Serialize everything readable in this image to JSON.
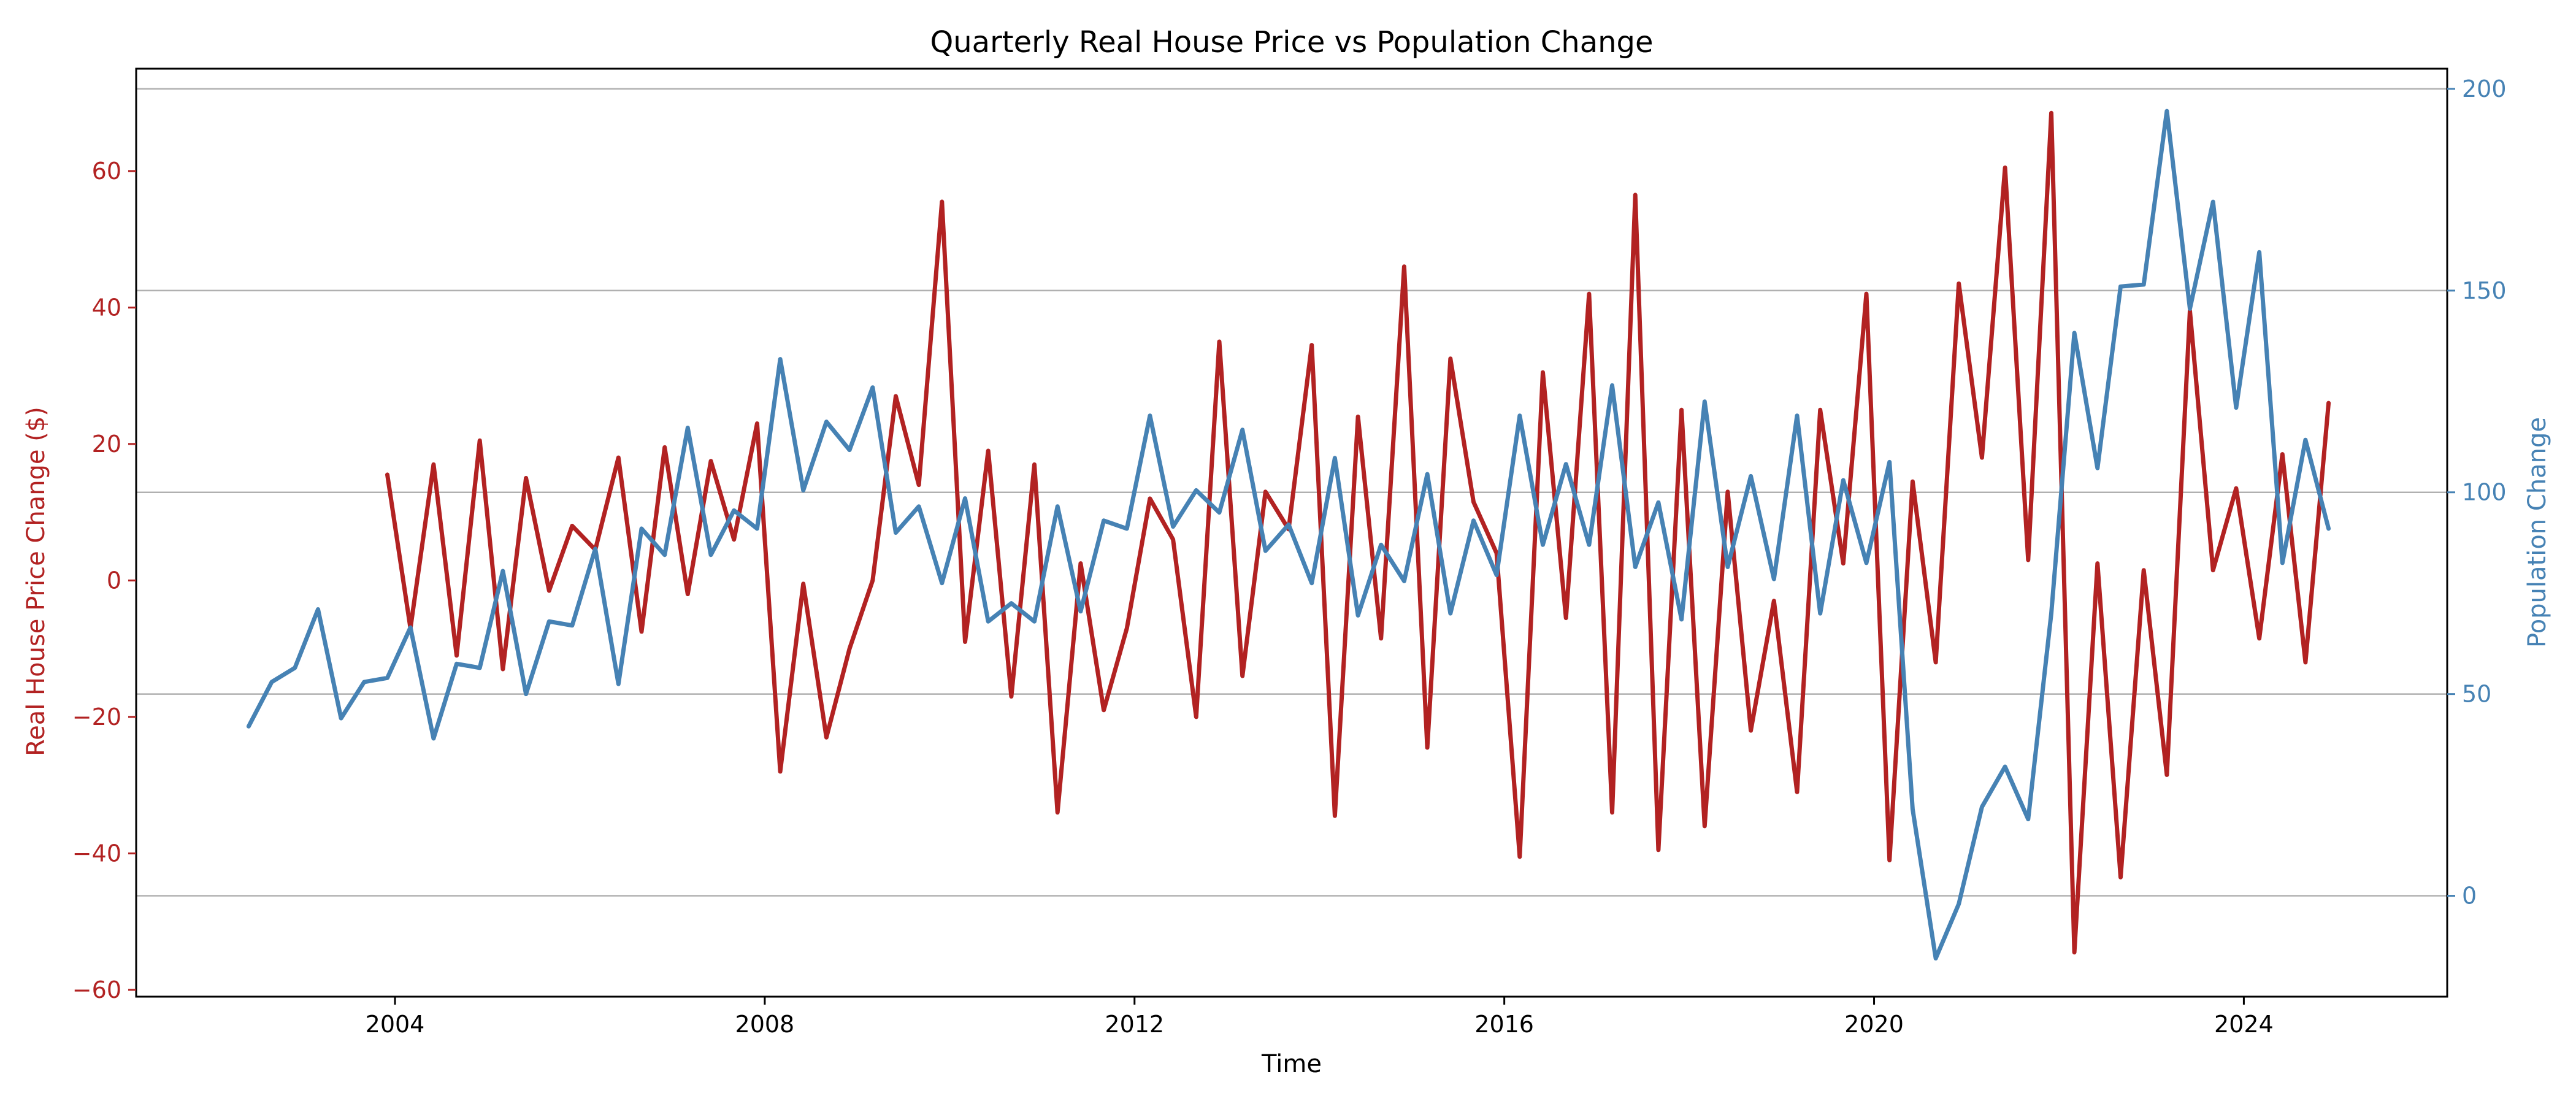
{
  "chart_data": {
    "type": "line",
    "title": "Quarterly Real House Price vs Population Change",
    "xlabel": "Time",
    "ylabel_left": "Real House Price Change ($)",
    "ylabel_right": "Population Change",
    "xlim": [
      2001.2,
      2026.2
    ],
    "ylim_left": [
      -61,
      75
    ],
    "ylim_right": [
      -25,
      205
    ],
    "x_ticks": [
      2004,
      2008,
      2012,
      2016,
      2020,
      2024
    ],
    "x_tick_labels": [
      "2004",
      "2008",
      "2012",
      "2016",
      "2020",
      "2024"
    ],
    "y_left_ticks": [
      -60,
      -40,
      -20,
      0,
      20,
      40,
      60
    ],
    "y_left_tick_labels": [
      "−60",
      "−40",
      "−20",
      "0",
      "20",
      "40",
      "60"
    ],
    "y_right_ticks": [
      0,
      50,
      100,
      150,
      200
    ],
    "y_right_tick_labels": [
      "0",
      "50",
      "100",
      "150",
      "200"
    ],
    "grid": "horizontal lines at right-axis ticks",
    "colors": {
      "left": "#b22222",
      "right": "#4682b4",
      "grid": "#b0b0b0",
      "frame": "#000000"
    },
    "series": [
      {
        "axis": "left",
        "x_start": 2003.917,
        "x_step": 0.25,
        "values": [
          15.5,
          -7,
          17,
          -11,
          20.5,
          -13,
          15,
          -1.5,
          8,
          4.5,
          18,
          -7.5,
          19.5,
          -2,
          17.5,
          6,
          23,
          -28,
          -0.5,
          -23,
          -10,
          0,
          27,
          14,
          55.5,
          -9,
          19,
          -17,
          17,
          -34,
          2.5,
          -19,
          -7,
          12,
          6,
          -20,
          35,
          -14,
          13,
          7.5,
          34.5,
          -34.5,
          24,
          -8.5,
          46,
          -24.5,
          32.5,
          11.5,
          4,
          -40.5,
          30.5,
          -5.5,
          42,
          -34,
          56.5,
          -39.5,
          25,
          -36,
          13,
          -22,
          -3,
          -31,
          25,
          2.5,
          42,
          -41,
          14.5,
          -12,
          43.5,
          18,
          60.5,
          3,
          68.5,
          -54.5,
          2.5,
          -43.5,
          1.5,
          -28.5,
          39.5,
          1.5,
          13.5,
          -8.5,
          18.5,
          -12,
          26
        ]
      },
      {
        "axis": "right",
        "x_start": 2002.417,
        "x_step": 0.25,
        "values": [
          42,
          53,
          56.5,
          71,
          44,
          53,
          54,
          66.5,
          39,
          57.5,
          56.5,
          80.5,
          50,
          68,
          67,
          86,
          52.5,
          91,
          84.5,
          116,
          84.5,
          95.5,
          91,
          133,
          100.5,
          117.5,
          110.5,
          126,
          90,
          96.5,
          77.5,
          98.5,
          68,
          72.5,
          68,
          96.5,
          70.5,
          93,
          91,
          119,
          91.5,
          100.5,
          95,
          115.5,
          85.5,
          92,
          77.5,
          108.5,
          69.5,
          87,
          78,
          104.5,
          70,
          93,
          79.5,
          119,
          87,
          107,
          87,
          126.5,
          81.5,
          97.5,
          68.5,
          122.5,
          81.5,
          104,
          78.5,
          119,
          70,
          103,
          82.5,
          107.5,
          21.5,
          -15.5,
          -2,
          22,
          32,
          19,
          70,
          139.5,
          106,
          151,
          151.5,
          194.5,
          145.5,
          172,
          121,
          159.5,
          82.5,
          113,
          91
        ]
      }
    ]
  }
}
